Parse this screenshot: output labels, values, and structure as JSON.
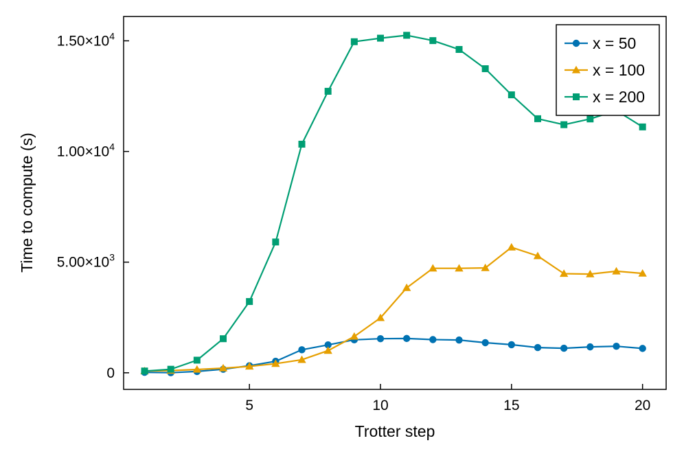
{
  "chart_data": {
    "type": "line",
    "title": "",
    "xlabel": "Trotter step",
    "ylabel": "Time to compute (s)",
    "xlim": [
      0.2,
      20.9
    ],
    "ylim": [
      -750,
      16100
    ],
    "x_ticks": [
      5,
      10,
      15,
      20
    ],
    "x_tick_labels": [
      "5",
      "10",
      "15",
      "20"
    ],
    "y_ticks": [
      0,
      5000,
      10000,
      15000
    ],
    "y_tick_labels": [
      {
        "mantissa": "0",
        "exp": ""
      },
      {
        "mantissa": "5.00×10",
        "exp": "3"
      },
      {
        "mantissa": "1.00×10",
        "exp": "4"
      },
      {
        "mantissa": "1.50×10",
        "exp": "4"
      }
    ],
    "grid": false,
    "legend_position": "top-right",
    "x": [
      1,
      2,
      3,
      4,
      5,
      6,
      7,
      8,
      9,
      10,
      11,
      12,
      13,
      14,
      15,
      16,
      17,
      18,
      19,
      20
    ],
    "series": [
      {
        "name": "x = 50",
        "color": "#0072B2",
        "marker": "circle",
        "values": [
          20,
          5,
          60,
          160,
          320,
          520,
          1040,
          1260,
          1490,
          1540,
          1550,
          1500,
          1480,
          1360,
          1270,
          1140,
          1110,
          1170,
          1200,
          1100
        ]
      },
      {
        "name": "x = 100",
        "color": "#E69F00",
        "marker": "triangle",
        "values": [
          80,
          100,
          150,
          210,
          290,
          410,
          590,
          1000,
          1640,
          2480,
          3840,
          4720,
          4720,
          4740,
          5670,
          5280,
          4480,
          4460,
          4590,
          4490
        ]
      },
      {
        "name": "x = 200",
        "color": "#009E73",
        "marker": "square",
        "values": [
          80,
          160,
          570,
          1540,
          3220,
          5910,
          10330,
          12720,
          14960,
          15120,
          15250,
          15010,
          14610,
          13740,
          12560,
          11480,
          11210,
          11470,
          11850,
          11110
        ]
      }
    ]
  }
}
